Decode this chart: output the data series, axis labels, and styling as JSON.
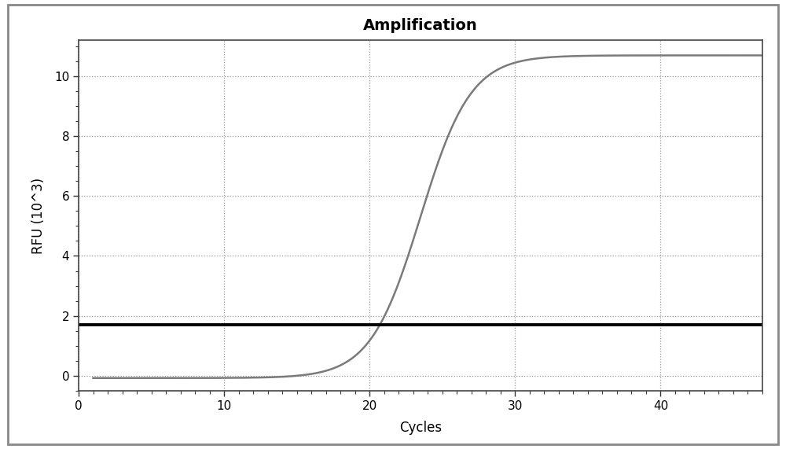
{
  "title": "Amplification",
  "xlabel": "Cycles",
  "ylabel": "RFU (10^3)",
  "xlim": [
    0,
    47
  ],
  "ylim": [
    -0.5,
    11.2
  ],
  "xticks": [
    0,
    10,
    20,
    30,
    40
  ],
  "yticks": [
    0,
    2,
    4,
    6,
    8,
    10
  ],
  "sigmoid_L": 10.78,
  "sigmoid_k": 0.58,
  "sigmoid_x0": 23.5,
  "sigmoid_baseline": -0.08,
  "threshold_y": 1.7,
  "curve_color": "#7a7a7a",
  "threshold_color": "#000000",
  "threshold_lw": 2.8,
  "curve_lw": 1.8,
  "grid_color": "#999999",
  "grid_style": "dotted",
  "bg_color": "#ffffff",
  "border_color": "#444444",
  "title_fontsize": 14,
  "label_fontsize": 12,
  "tick_fontsize": 11,
  "figure_bg": "#ffffff",
  "outer_border_color": "#aaaaaa"
}
